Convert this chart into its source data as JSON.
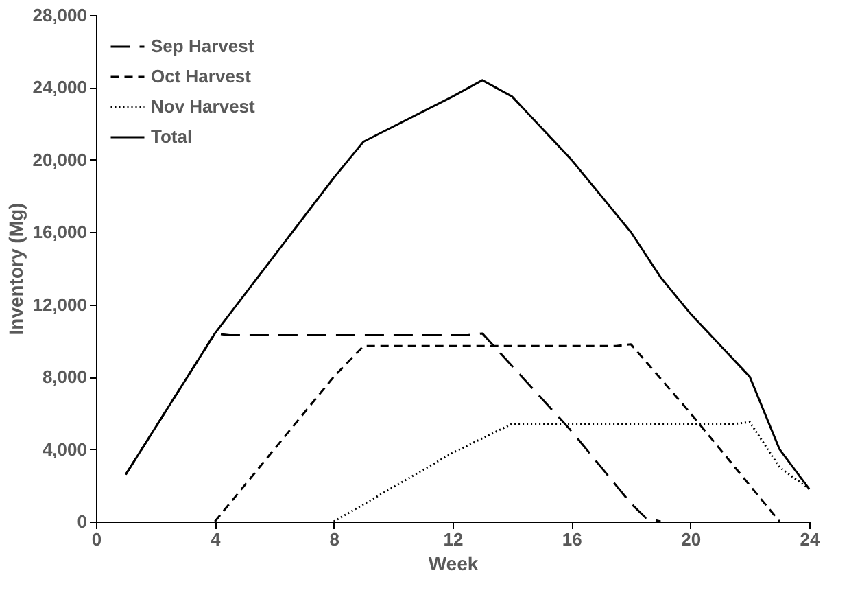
{
  "chart_data": {
    "type": "line",
    "xlabel": "Week",
    "ylabel": "Inventory (Mg)",
    "xlim": [
      0,
      24
    ],
    "xticks": [
      0,
      4,
      8,
      12,
      16,
      20,
      24
    ],
    "ylim": [
      0,
      28000
    ],
    "yticks": [
      0,
      {
        "value": 4000,
        "label": "4,000"
      },
      {
        "value": 8000,
        "label": "8,000"
      },
      {
        "value": 12000,
        "label": "12,000"
      },
      {
        "value": 16000,
        "label": "16,000"
      },
      {
        "value": 20000,
        "label": "20,000"
      },
      {
        "value": 24000,
        "label": "24,000"
      },
      {
        "value": 28000,
        "label": "28,000"
      }
    ],
    "grid": false,
    "legend": "top left",
    "marker": "none",
    "series": [
      {
        "name": "Sep Harvest",
        "color": "#000000",
        "line_style": "longdash",
        "x": [
          1,
          4,
          4.5,
          12.5,
          13,
          16,
          18,
          18.5,
          19
        ],
        "values": [
          2600,
          10400,
          10300,
          10300,
          10400,
          5000,
          1000,
          200,
          0
        ]
      },
      {
        "name": "Oct Harvest",
        "color": "#000000",
        "line_style": "dashed",
        "x": [
          4,
          8,
          9,
          17.5,
          18,
          20,
          22,
          23
        ],
        "values": [
          0,
          8000,
          9700,
          9700,
          9800,
          6000,
          2000,
          0
        ]
      },
      {
        "name": "Nov Harvest",
        "color": "#000000",
        "line_style": "dotted",
        "x": [
          8,
          12,
          14,
          21.5,
          22,
          23,
          24
        ],
        "values": [
          0,
          3800,
          5400,
          5400,
          5500,
          3000,
          1800
        ]
      },
      {
        "name": "Total",
        "color": "#000000",
        "line_style": "solid",
        "x": [
          1,
          4,
          8,
          9,
          12,
          13,
          14,
          16,
          18,
          19,
          20,
          22,
          23,
          24
        ],
        "values": [
          2600,
          10400,
          19000,
          21000,
          23500,
          24400,
          23500,
          20000,
          16000,
          13500,
          11500,
          8000,
          4000,
          1800
        ]
      }
    ]
  }
}
